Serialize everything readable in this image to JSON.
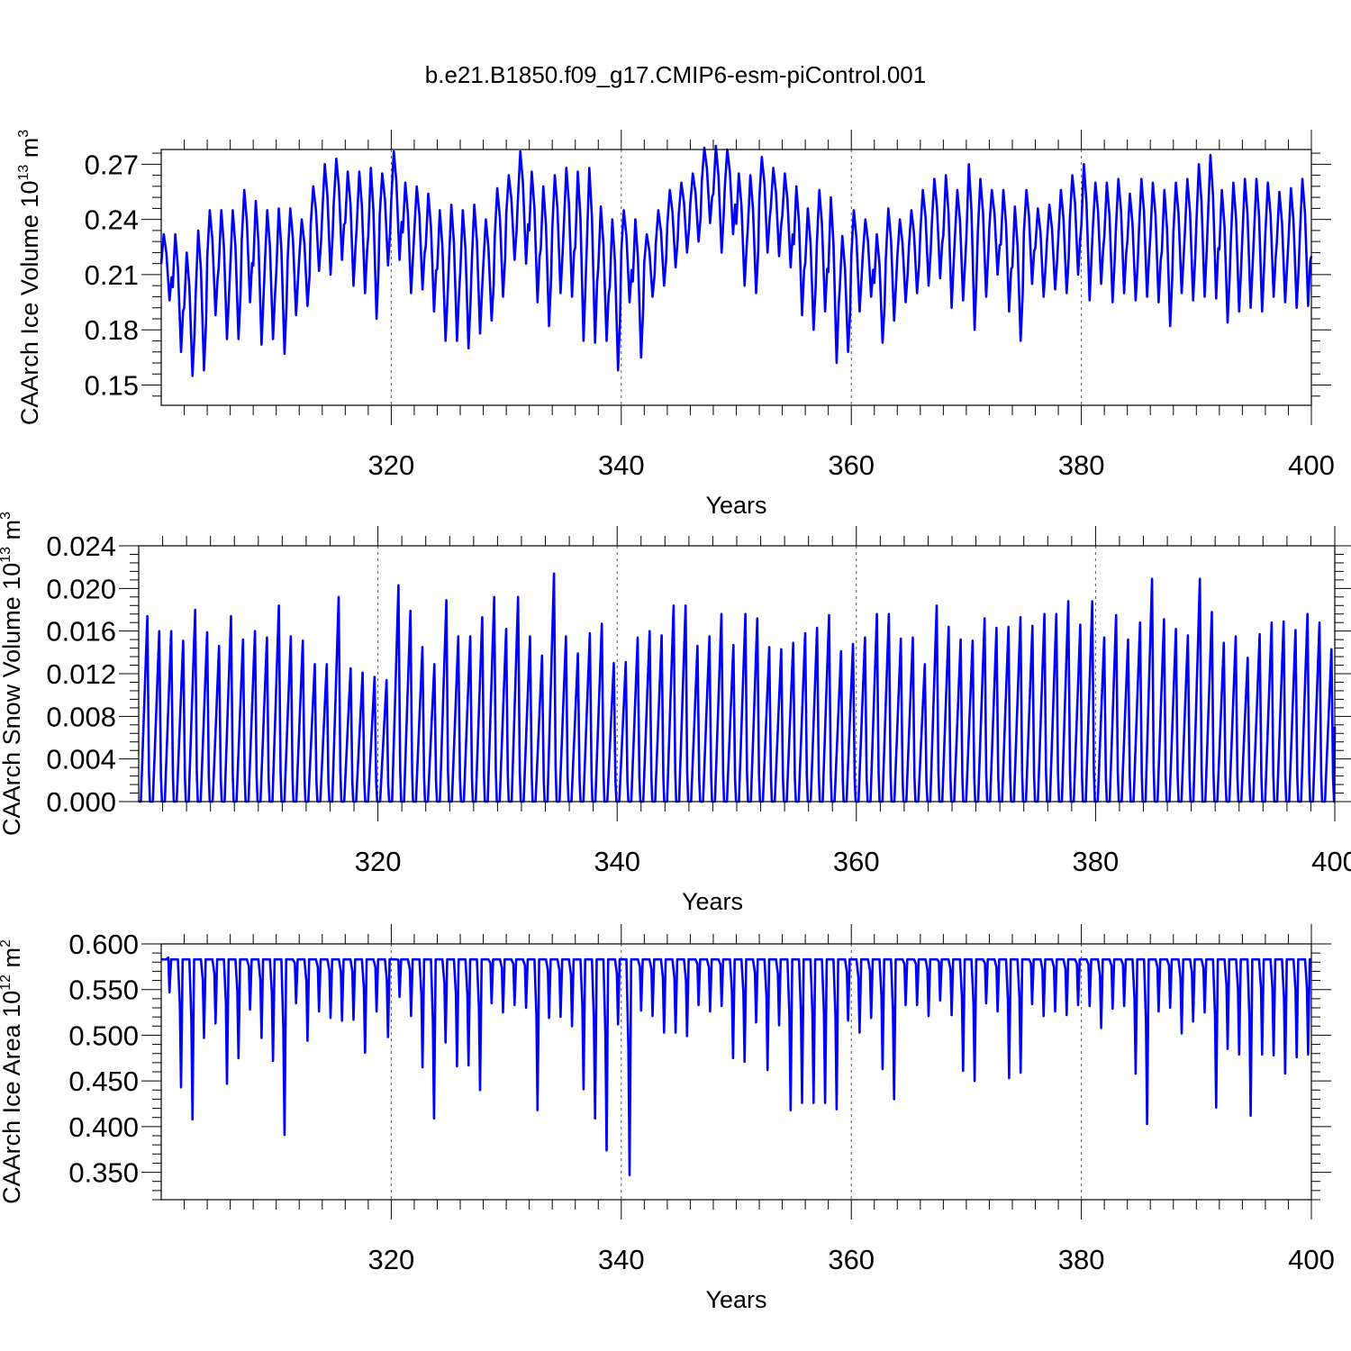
{
  "title": "b.e21.B1850.f09_g17.CMIP6-esm-piControl.001",
  "colors": {
    "line": "#0000ff",
    "axis": "#000000",
    "grid": "#555555"
  },
  "chart_data": [
    {
      "type": "line",
      "name": "ice_volume",
      "title": "",
      "xlabel": "Years",
      "ylabel": {
        "text": "CAArch Ice Volume 10",
        "exp": "13",
        "unit": " m",
        "unit_exp": "3"
      },
      "xlim": [
        300,
        400
      ],
      "ylim": [
        0.139,
        0.278
      ],
      "xticks": [
        320,
        340,
        360,
        380,
        400
      ],
      "xtick_labels": [
        "320",
        "340",
        "360",
        "380",
        "400"
      ],
      "yticks": [
        0.15,
        0.18,
        0.21,
        0.24,
        0.27
      ],
      "ytick_labels": [
        "0.15",
        "0.18",
        "0.21",
        "0.24",
        "0.27"
      ],
      "grid": "dashed vertical at major x ticks",
      "years": [
        300,
        301,
        302,
        303,
        304,
        305,
        306,
        307,
        308,
        309,
        310,
        311,
        312,
        313,
        314,
        315,
        316,
        317,
        318,
        319,
        320,
        321,
        322,
        323,
        324,
        325,
        326,
        327,
        328,
        329,
        330,
        331,
        332,
        333,
        334,
        335,
        336,
        337,
        338,
        339,
        340,
        341,
        342,
        343,
        344,
        345,
        346,
        347,
        348,
        349,
        350,
        351,
        352,
        353,
        354,
        355,
        356,
        357,
        358,
        359,
        360,
        361,
        362,
        363,
        364,
        365,
        366,
        367,
        368,
        369,
        370,
        371,
        372,
        373,
        374,
        375,
        376,
        377,
        378,
        379,
        380,
        381,
        382,
        383,
        384,
        385,
        386,
        387,
        388,
        389,
        390,
        391,
        392,
        393,
        394,
        395,
        396,
        397,
        398,
        399
      ],
      "annual_max": [
        0.232,
        0.232,
        0.222,
        0.234,
        0.245,
        0.245,
        0.245,
        0.256,
        0.25,
        0.245,
        0.246,
        0.246,
        0.24,
        0.258,
        0.27,
        0.273,
        0.266,
        0.266,
        0.268,
        0.265,
        0.277,
        0.26,
        0.258,
        0.254,
        0.245,
        0.248,
        0.245,
        0.248,
        0.24,
        0.257,
        0.264,
        0.277,
        0.266,
        0.258,
        0.264,
        0.268,
        0.266,
        0.268,
        0.247,
        0.24,
        0.245,
        0.24,
        0.232,
        0.245,
        0.256,
        0.26,
        0.265,
        0.279,
        0.28,
        0.278,
        0.265,
        0.264,
        0.274,
        0.268,
        0.265,
        0.258,
        0.246,
        0.256,
        0.252,
        0.231,
        0.245,
        0.24,
        0.232,
        0.246,
        0.24,
        0.245,
        0.256,
        0.262,
        0.264,
        0.256,
        0.27,
        0.262,
        0.256,
        0.256,
        0.247,
        0.256,
        0.246,
        0.248,
        0.256,
        0.264,
        0.27,
        0.26,
        0.26,
        0.262,
        0.254,
        0.262,
        0.26,
        0.256,
        0.26,
        0.262,
        0.27,
        0.275,
        0.256,
        0.26,
        0.262,
        0.262,
        0.26,
        0.255,
        0.257,
        0.262
      ],
      "annual_min": [
        0.196,
        0.168,
        0.155,
        0.158,
        0.188,
        0.175,
        0.175,
        0.195,
        0.172,
        0.175,
        0.167,
        0.188,
        0.193,
        0.212,
        0.21,
        0.218,
        0.204,
        0.2,
        0.186,
        0.215,
        0.218,
        0.2,
        0.202,
        0.19,
        0.174,
        0.174,
        0.17,
        0.178,
        0.185,
        0.198,
        0.218,
        0.216,
        0.195,
        0.182,
        0.2,
        0.198,
        0.174,
        0.173,
        0.174,
        0.158,
        0.195,
        0.165,
        0.198,
        0.204,
        0.214,
        0.222,
        0.228,
        0.238,
        0.222,
        0.232,
        0.204,
        0.2,
        0.222,
        0.22,
        0.214,
        0.188,
        0.18,
        0.19,
        0.162,
        0.168,
        0.19,
        0.198,
        0.173,
        0.185,
        0.195,
        0.2,
        0.204,
        0.208,
        0.192,
        0.196,
        0.18,
        0.198,
        0.21,
        0.19,
        0.174,
        0.205,
        0.198,
        0.202,
        0.2,
        0.21,
        0.196,
        0.205,
        0.195,
        0.2,
        0.196,
        0.198,
        0.195,
        0.182,
        0.2,
        0.196,
        0.198,
        0.197,
        0.184,
        0.19,
        0.192,
        0.19,
        0.198,
        0.195,
        0.192,
        0.193
      ]
    },
    {
      "type": "line",
      "name": "snow_volume",
      "title": "",
      "xlabel": "Years",
      "ylabel": {
        "text": "CAArch Snow Volume 10",
        "exp": "13",
        "unit": " m",
        "unit_exp": "3"
      },
      "xlim": [
        300,
        400
      ],
      "ylim": [
        0.0,
        0.024
      ],
      "xticks": [
        320,
        340,
        360,
        380,
        400
      ],
      "xtick_labels": [
        "320",
        "340",
        "360",
        "380",
        "400"
      ],
      "yticks": [
        0.0,
        0.004,
        0.008,
        0.012,
        0.016,
        0.02,
        0.024
      ],
      "ytick_labels": [
        "0.000",
        "0.004",
        "0.008",
        "0.012",
        "0.016",
        "0.020",
        "0.024"
      ],
      "grid": "dashed vertical at major x ticks",
      "years": [
        300,
        301,
        302,
        303,
        304,
        305,
        306,
        307,
        308,
        309,
        310,
        311,
        312,
        313,
        314,
        315,
        316,
        317,
        318,
        319,
        320,
        321,
        322,
        323,
        324,
        325,
        326,
        327,
        328,
        329,
        330,
        331,
        332,
        333,
        334,
        335,
        336,
        337,
        338,
        339,
        340,
        341,
        342,
        343,
        344,
        345,
        346,
        347,
        348,
        349,
        350,
        351,
        352,
        353,
        354,
        355,
        356,
        357,
        358,
        359,
        360,
        361,
        362,
        363,
        364,
        365,
        366,
        367,
        368,
        369,
        370,
        371,
        372,
        373,
        374,
        375,
        376,
        377,
        378,
        379,
        380,
        381,
        382,
        383,
        384,
        385,
        386,
        387,
        388,
        389,
        390,
        391,
        392,
        393,
        394,
        395,
        396,
        397,
        398,
        399
      ],
      "annual_max": [
        0.0174,
        0.016,
        0.016,
        0.0151,
        0.018,
        0.0159,
        0.0146,
        0.0174,
        0.0152,
        0.016,
        0.0154,
        0.0184,
        0.0155,
        0.0151,
        0.0129,
        0.0129,
        0.0192,
        0.0125,
        0.0121,
        0.0117,
        0.0114,
        0.0203,
        0.0179,
        0.0145,
        0.0129,
        0.0189,
        0.0155,
        0.0155,
        0.0173,
        0.0192,
        0.0162,
        0.0192,
        0.0155,
        0.0137,
        0.0214,
        0.0155,
        0.0139,
        0.0158,
        0.0167,
        0.013,
        0.0131,
        0.0154,
        0.016,
        0.0156,
        0.0184,
        0.0184,
        0.0146,
        0.0155,
        0.0176,
        0.0147,
        0.0176,
        0.0172,
        0.0145,
        0.0143,
        0.0149,
        0.0158,
        0.0163,
        0.0175,
        0.0141,
        0.0148,
        0.0154,
        0.0176,
        0.0176,
        0.0153,
        0.0154,
        0.0129,
        0.0184,
        0.0164,
        0.0152,
        0.0151,
        0.0172,
        0.0163,
        0.0164,
        0.0173,
        0.0165,
        0.0176,
        0.0176,
        0.0188,
        0.0166,
        0.0188,
        0.0154,
        0.0175,
        0.0152,
        0.0168,
        0.0209,
        0.0171,
        0.0162,
        0.0156,
        0.0209,
        0.0178,
        0.0149,
        0.0155,
        0.0135,
        0.0157,
        0.0168,
        0.0169,
        0.0161,
        0.0176,
        0.0168,
        0.0143
      ],
      "annual_min": [
        0.0,
        0.0,
        0.0,
        0.0,
        0.0,
        0.0,
        0.0,
        0.0,
        0.0,
        0.0,
        0.0,
        0.0,
        0.0,
        0.0,
        0.0,
        0.0,
        0.0,
        0.0,
        0.0,
        0.0,
        0.0,
        0.0,
        0.0,
        0.0,
        0.0,
        0.0,
        0.0,
        0.0,
        0.0,
        0.0,
        0.0,
        0.0,
        0.0,
        0.0,
        0.0,
        0.0,
        0.0,
        0.0,
        0.0,
        0.0,
        0.0,
        0.0,
        0.0,
        0.0,
        0.0,
        0.0,
        0.0,
        0.0,
        0.0,
        0.0,
        0.0,
        0.0,
        0.0,
        0.0,
        0.0,
        0.0,
        0.0,
        0.0,
        0.0,
        0.0,
        0.0,
        0.0,
        0.0,
        0.0,
        0.0,
        0.0,
        0.0,
        0.0,
        0.0,
        0.0,
        0.0,
        0.0,
        0.0,
        0.0,
        0.0,
        0.0,
        0.0,
        0.0,
        0.0,
        0.0,
        0.0,
        0.0,
        0.0,
        0.0,
        0.0,
        0.0,
        0.0,
        0.0,
        0.0,
        0.0,
        0.0,
        0.0,
        0.0,
        0.0,
        0.0,
        0.0,
        0.0,
        0.0,
        0.0,
        0.0
      ]
    },
    {
      "type": "line",
      "name": "ice_area",
      "title": "",
      "xlabel": "Years",
      "ylabel": {
        "text": "CAArch Ice Area 10",
        "exp": "12",
        "unit": " m",
        "unit_exp": "2"
      },
      "xlim": [
        300,
        400
      ],
      "ylim": [
        0.32,
        0.6
      ],
      "xticks": [
        320,
        340,
        360,
        380,
        400
      ],
      "xtick_labels": [
        "320",
        "340",
        "360",
        "380",
        "400"
      ],
      "yticks": [
        0.35,
        0.4,
        0.45,
        0.5,
        0.55,
        0.6
      ],
      "ytick_labels": [
        "0.350",
        "0.400",
        "0.450",
        "0.500",
        "0.550",
        "0.600"
      ],
      "grid": "dashed vertical at major x ticks",
      "years": [
        300,
        301,
        302,
        303,
        304,
        305,
        306,
        307,
        308,
        309,
        310,
        311,
        312,
        313,
        314,
        315,
        316,
        317,
        318,
        319,
        320,
        321,
        322,
        323,
        324,
        325,
        326,
        327,
        328,
        329,
        330,
        331,
        332,
        333,
        334,
        335,
        336,
        337,
        338,
        339,
        340,
        341,
        342,
        343,
        344,
        345,
        346,
        347,
        348,
        349,
        350,
        351,
        352,
        353,
        354,
        355,
        356,
        357,
        358,
        359,
        360,
        361,
        362,
        363,
        364,
        365,
        366,
        367,
        368,
        369,
        370,
        371,
        372,
        373,
        374,
        375,
        376,
        377,
        378,
        379,
        380,
        381,
        382,
        383,
        384,
        385,
        386,
        387,
        388,
        389,
        390,
        391,
        392,
        393,
        394,
        395,
        396,
        397,
        398,
        399
      ],
      "annual_max": [
        0.583,
        0.583,
        0.583,
        0.583,
        0.583,
        0.583,
        0.583,
        0.583,
        0.583,
        0.583,
        0.583,
        0.583,
        0.583,
        0.583,
        0.583,
        0.583,
        0.583,
        0.583,
        0.583,
        0.583,
        0.583,
        0.583,
        0.583,
        0.583,
        0.583,
        0.583,
        0.583,
        0.583,
        0.583,
        0.583,
        0.583,
        0.583,
        0.583,
        0.583,
        0.583,
        0.583,
        0.583,
        0.583,
        0.583,
        0.583,
        0.583,
        0.583,
        0.583,
        0.583,
        0.583,
        0.583,
        0.583,
        0.583,
        0.583,
        0.583,
        0.583,
        0.583,
        0.583,
        0.583,
        0.583,
        0.583,
        0.583,
        0.583,
        0.583,
        0.583,
        0.583,
        0.583,
        0.583,
        0.583,
        0.583,
        0.583,
        0.583,
        0.583,
        0.583,
        0.583,
        0.583,
        0.583,
        0.583,
        0.583,
        0.583,
        0.583,
        0.583,
        0.583,
        0.583,
        0.583,
        0.583,
        0.583,
        0.583,
        0.583,
        0.583,
        0.583,
        0.583,
        0.583,
        0.583,
        0.583,
        0.583,
        0.583,
        0.583,
        0.583,
        0.583,
        0.583,
        0.583,
        0.583,
        0.583,
        0.583
      ],
      "annual_min": [
        0.547,
        0.443,
        0.408,
        0.497,
        0.513,
        0.447,
        0.475,
        0.528,
        0.497,
        0.472,
        0.391,
        0.535,
        0.494,
        0.526,
        0.519,
        0.516,
        0.517,
        0.481,
        0.526,
        0.498,
        0.542,
        0.521,
        0.465,
        0.409,
        0.492,
        0.466,
        0.467,
        0.44,
        0.535,
        0.525,
        0.533,
        0.53,
        0.418,
        0.519,
        0.52,
        0.51,
        0.441,
        0.409,
        0.374,
        0.512,
        0.347,
        0.527,
        0.521,
        0.503,
        0.503,
        0.499,
        0.533,
        0.526,
        0.532,
        0.475,
        0.471,
        0.514,
        0.462,
        0.511,
        0.418,
        0.426,
        0.426,
        0.426,
        0.419,
        0.516,
        0.503,
        0.519,
        0.463,
        0.43,
        0.533,
        0.533,
        0.521,
        0.538,
        0.522,
        0.461,
        0.45,
        0.535,
        0.526,
        0.453,
        0.459,
        0.534,
        0.521,
        0.526,
        0.522,
        0.533,
        0.532,
        0.508,
        0.529,
        0.532,
        0.458,
        0.403,
        0.526,
        0.53,
        0.502,
        0.515,
        0.525,
        0.421,
        0.485,
        0.479,
        0.412,
        0.479,
        0.478,
        0.458,
        0.476,
        0.479
      ]
    }
  ]
}
